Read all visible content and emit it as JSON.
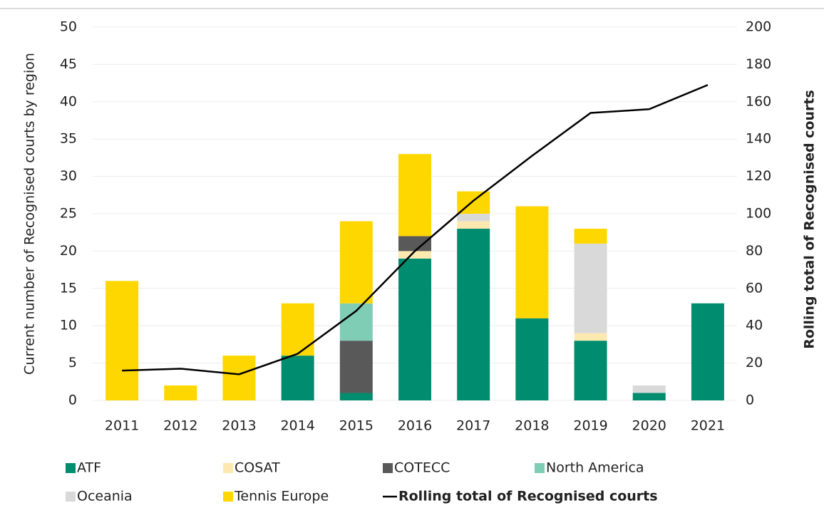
{
  "chart_data": {
    "type": "bar",
    "stacked": true,
    "categories": [
      "2011",
      "2012",
      "2013",
      "2014",
      "2015",
      "2016",
      "2017",
      "2018",
      "2019",
      "2020",
      "2021"
    ],
    "series": [
      {
        "name": "ATF",
        "color": "#008c6e",
        "values": [
          0,
          0,
          0,
          6,
          1,
          19,
          23,
          11,
          8,
          1,
          13
        ]
      },
      {
        "name": "COSAT",
        "color": "#fde9b0",
        "values": [
          0,
          0,
          0,
          0,
          0,
          1,
          1,
          0,
          1,
          0,
          0
        ]
      },
      {
        "name": "COTECC",
        "color": "#595959",
        "values": [
          0,
          0,
          0,
          0,
          7,
          2,
          0,
          0,
          0,
          0,
          0
        ]
      },
      {
        "name": "North America",
        "color": "#7fcdb5",
        "values": [
          0,
          0,
          0,
          0,
          5,
          0,
          0,
          0,
          0,
          0,
          0
        ]
      },
      {
        "name": "Oceania",
        "color": "#d9d9d9",
        "values": [
          0,
          0,
          0,
          0,
          0,
          0,
          1,
          0,
          12,
          1,
          0
        ]
      },
      {
        "name": "Tennis Europe",
        "color": "#ffd700",
        "values": [
          16,
          2,
          6,
          7,
          11,
          11,
          3,
          15,
          2,
          0,
          0
        ]
      },
      {
        "name": "Rolling total of Recognised courts",
        "color": "#000000",
        "type": "line",
        "axis": "y2",
        "values": [
          16,
          17,
          14,
          25,
          48,
          80,
          107,
          131,
          154,
          156,
          169
        ]
      }
    ],
    "y_label": "Current number of Recognised courts by region",
    "y2_label": "Rolling total of Recognised courts",
    "ylim": [
      0,
      50
    ],
    "yticks": [
      0,
      5,
      10,
      15,
      20,
      25,
      30,
      35,
      40,
      45,
      50
    ],
    "y2lim": [
      0,
      200
    ],
    "y2ticks": [
      0,
      20,
      40,
      60,
      80,
      100,
      120,
      140,
      160,
      180,
      200
    ],
    "grid": true,
    "legend": "bottom"
  }
}
